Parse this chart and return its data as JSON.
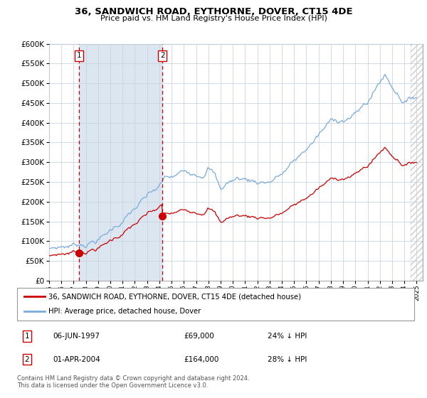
{
  "title": "36, SANDWICH ROAD, EYTHORNE, DOVER, CT15 4DE",
  "subtitle": "Price paid vs. HM Land Registry's House Price Index (HPI)",
  "legend_line1": "36, SANDWICH ROAD, EYTHORNE, DOVER, CT15 4DE (detached house)",
  "legend_line2": "HPI: Average price, detached house, Dover",
  "annotation1_label": "1",
  "annotation1_date": "06-JUN-1997",
  "annotation1_price": "£69,000",
  "annotation1_hpi": "24% ↓ HPI",
  "annotation2_label": "2",
  "annotation2_date": "01-APR-2004",
  "annotation2_price": "£164,000",
  "annotation2_hpi": "28% ↓ HPI",
  "footer": "Contains HM Land Registry data © Crown copyright and database right 2024.\nThis data is licensed under the Open Government Licence v3.0.",
  "hpi_color": "#7aabdc",
  "price_color": "#cc0000",
  "dot_color": "#cc0000",
  "vline_color": "#cc0000",
  "shade_color": "#dce6f1",
  "grid_color": "#c8d4e3",
  "background_color": "#ffffff",
  "ylim": [
    0,
    600000
  ],
  "yticks": [
    0,
    50000,
    100000,
    150000,
    200000,
    250000,
    300000,
    350000,
    400000,
    450000,
    500000,
    550000,
    600000
  ],
  "sale1_x": 1997.42,
  "sale1_y": 69000,
  "sale2_x": 2004.25,
  "sale2_y": 164000,
  "xmin": 1995.0,
  "xmax": 2025.5
}
